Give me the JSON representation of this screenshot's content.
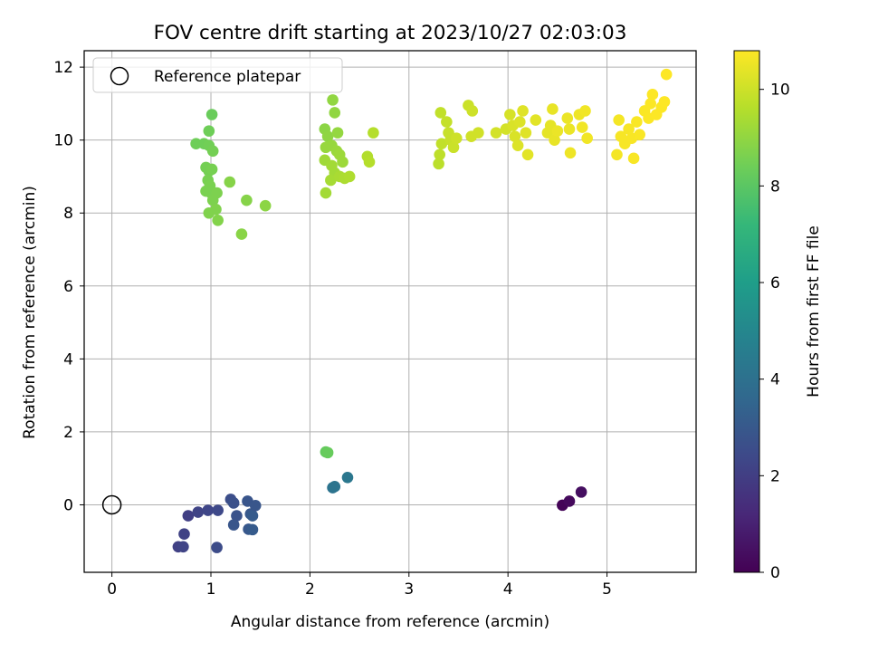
{
  "chart_data": {
    "type": "scatter",
    "title": "FOV centre drift starting at 2023/10/27 02:03:03",
    "xlabel": "Angular distance from reference (arcmin)",
    "ylabel": "Rotation from reference (arcmin)",
    "xlim": [
      -0.28,
      5.9
    ],
    "ylim": [
      -1.85,
      12.45
    ],
    "xticks": [
      0,
      1,
      2,
      3,
      4,
      5
    ],
    "yticks": [
      0,
      2,
      4,
      6,
      8,
      10,
      12
    ],
    "grid": true,
    "legend": {
      "placement": "top-left",
      "entries": [
        "Reference platepar"
      ]
    },
    "reference_point": {
      "x": 0,
      "y": 0,
      "label": "Reference platepar"
    },
    "colorbar": {
      "label": "Hours from first FF file",
      "min": 0,
      "max": 10.8,
      "ticks": [
        0,
        2,
        4,
        6,
        8,
        10
      ],
      "colormap": "viridis"
    },
    "series": [
      {
        "values": [
          {
            "x": 4.55,
            "y": -0.01,
            "t": 0.1
          },
          {
            "x": 4.62,
            "y": 0.1,
            "t": 0.25
          },
          {
            "x": 4.74,
            "y": 0.35,
            "t": 0.4
          },
          {
            "x": 0.67,
            "y": -1.15,
            "t": 2.1
          },
          {
            "x": 0.72,
            "y": -1.15,
            "t": 2.2
          },
          {
            "x": 0.73,
            "y": -0.8,
            "t": 2.15
          },
          {
            "x": 0.77,
            "y": -0.3,
            "t": 2.05
          },
          {
            "x": 0.87,
            "y": -0.2,
            "t": 2.2
          },
          {
            "x": 0.97,
            "y": -0.15,
            "t": 2.3
          },
          {
            "x": 1.07,
            "y": -0.15,
            "t": 2.4
          },
          {
            "x": 1.06,
            "y": -1.17,
            "t": 2.5
          },
          {
            "x": 1.2,
            "y": 0.15,
            "t": 2.6
          },
          {
            "x": 1.23,
            "y": 0.05,
            "t": 2.7
          },
          {
            "x": 1.26,
            "y": -0.3,
            "t": 2.8
          },
          {
            "x": 1.23,
            "y": -0.55,
            "t": 2.9
          },
          {
            "x": 1.37,
            "y": 0.1,
            "t": 2.85
          },
          {
            "x": 1.4,
            "y": -0.25,
            "t": 3.0
          },
          {
            "x": 1.42,
            "y": -0.3,
            "t": 3.1
          },
          {
            "x": 1.38,
            "y": -0.67,
            "t": 3.0
          },
          {
            "x": 1.42,
            "y": -0.68,
            "t": 3.1
          },
          {
            "x": 1.45,
            "y": -0.02,
            "t": 2.9
          },
          {
            "x": 2.23,
            "y": 0.47,
            "t": 4.1
          },
          {
            "x": 2.25,
            "y": 0.5,
            "t": 4.15
          },
          {
            "x": 2.38,
            "y": 0.75,
            "t": 4.3
          },
          {
            "x": 2.16,
            "y": 1.45,
            "t": 8.2
          },
          {
            "x": 2.18,
            "y": 1.43,
            "t": 8.25
          },
          {
            "x": 0.85,
            "y": 9.9,
            "t": 8.4
          },
          {
            "x": 0.93,
            "y": 9.9,
            "t": 8.4
          },
          {
            "x": 0.98,
            "y": 9.85,
            "t": 8.45
          },
          {
            "x": 1.02,
            "y": 9.7,
            "t": 8.5
          },
          {
            "x": 0.98,
            "y": 10.25,
            "t": 8.4
          },
          {
            "x": 1.01,
            "y": 10.7,
            "t": 8.3
          },
          {
            "x": 0.95,
            "y": 9.25,
            "t": 8.5
          },
          {
            "x": 0.98,
            "y": 9.15,
            "t": 8.5
          },
          {
            "x": 1.01,
            "y": 9.2,
            "t": 8.55
          },
          {
            "x": 0.97,
            "y": 8.9,
            "t": 8.55
          },
          {
            "x": 0.99,
            "y": 8.75,
            "t": 8.6
          },
          {
            "x": 0.95,
            "y": 8.6,
            "t": 8.6
          },
          {
            "x": 1.0,
            "y": 8.55,
            "t": 8.6
          },
          {
            "x": 1.06,
            "y": 8.55,
            "t": 8.65
          },
          {
            "x": 1.02,
            "y": 8.35,
            "t": 8.65
          },
          {
            "x": 0.98,
            "y": 8.0,
            "t": 8.7
          },
          {
            "x": 1.05,
            "y": 8.1,
            "t": 8.7
          },
          {
            "x": 1.07,
            "y": 7.8,
            "t": 8.75
          },
          {
            "x": 1.19,
            "y": 8.85,
            "t": 8.8
          },
          {
            "x": 1.36,
            "y": 8.35,
            "t": 8.8
          },
          {
            "x": 1.31,
            "y": 7.42,
            "t": 8.85
          },
          {
            "x": 1.55,
            "y": 8.2,
            "t": 8.9
          },
          {
            "x": 2.15,
            "y": 10.3,
            "t": 8.9
          },
          {
            "x": 2.18,
            "y": 10.1,
            "t": 8.95
          },
          {
            "x": 2.23,
            "y": 11.1,
            "t": 9.0
          },
          {
            "x": 2.25,
            "y": 10.75,
            "t": 9.0
          },
          {
            "x": 2.28,
            "y": 10.2,
            "t": 9.05
          },
          {
            "x": 2.16,
            "y": 9.8,
            "t": 9.1
          },
          {
            "x": 2.22,
            "y": 9.85,
            "t": 9.1
          },
          {
            "x": 2.27,
            "y": 9.7,
            "t": 9.15
          },
          {
            "x": 2.3,
            "y": 9.6,
            "t": 9.2
          },
          {
            "x": 2.33,
            "y": 9.4,
            "t": 9.2
          },
          {
            "x": 2.15,
            "y": 9.45,
            "t": 9.25
          },
          {
            "x": 2.22,
            "y": 9.3,
            "t": 9.3
          },
          {
            "x": 2.25,
            "y": 9.1,
            "t": 9.3
          },
          {
            "x": 2.21,
            "y": 8.9,
            "t": 9.35
          },
          {
            "x": 2.3,
            "y": 9.0,
            "t": 9.4
          },
          {
            "x": 2.35,
            "y": 8.95,
            "t": 9.45
          },
          {
            "x": 2.4,
            "y": 9.0,
            "t": 9.5
          },
          {
            "x": 2.16,
            "y": 8.55,
            "t": 9.3
          },
          {
            "x": 2.58,
            "y": 9.55,
            "t": 9.55
          },
          {
            "x": 2.6,
            "y": 9.4,
            "t": 9.6
          },
          {
            "x": 2.64,
            "y": 10.2,
            "t": 9.6
          },
          {
            "x": 3.3,
            "y": 9.35,
            "t": 9.7
          },
          {
            "x": 3.31,
            "y": 9.6,
            "t": 9.75
          },
          {
            "x": 3.33,
            "y": 9.9,
            "t": 9.8
          },
          {
            "x": 3.32,
            "y": 10.75,
            "t": 9.8
          },
          {
            "x": 3.38,
            "y": 10.5,
            "t": 9.85
          },
          {
            "x": 3.4,
            "y": 10.2,
            "t": 9.9
          },
          {
            "x": 3.42,
            "y": 10.0,
            "t": 9.9
          },
          {
            "x": 3.45,
            "y": 9.8,
            "t": 9.95
          },
          {
            "x": 3.48,
            "y": 10.05,
            "t": 10.0
          },
          {
            "x": 3.6,
            "y": 10.95,
            "t": 9.95
          },
          {
            "x": 3.64,
            "y": 10.8,
            "t": 10.0
          },
          {
            "x": 3.63,
            "y": 10.1,
            "t": 10.05
          },
          {
            "x": 3.7,
            "y": 10.2,
            "t": 10.05
          },
          {
            "x": 3.88,
            "y": 10.2,
            "t": 10.1
          },
          {
            "x": 3.98,
            "y": 10.3,
            "t": 10.1
          },
          {
            "x": 4.02,
            "y": 10.7,
            "t": 10.15
          },
          {
            "x": 4.05,
            "y": 10.4,
            "t": 10.2
          },
          {
            "x": 4.07,
            "y": 10.1,
            "t": 10.2
          },
          {
            "x": 4.1,
            "y": 9.85,
            "t": 10.25
          },
          {
            "x": 4.12,
            "y": 10.5,
            "t": 10.25
          },
          {
            "x": 4.15,
            "y": 10.8,
            "t": 10.3
          },
          {
            "x": 4.18,
            "y": 10.2,
            "t": 10.3
          },
          {
            "x": 4.2,
            "y": 9.6,
            "t": 10.35
          },
          {
            "x": 4.28,
            "y": 10.55,
            "t": 10.35
          },
          {
            "x": 4.4,
            "y": 10.2,
            "t": 10.4
          },
          {
            "x": 4.43,
            "y": 10.4,
            "t": 10.4
          },
          {
            "x": 4.45,
            "y": 10.85,
            "t": 10.45
          },
          {
            "x": 4.47,
            "y": 10.0,
            "t": 10.45
          },
          {
            "x": 4.5,
            "y": 10.25,
            "t": 10.5
          },
          {
            "x": 4.6,
            "y": 10.6,
            "t": 10.5
          },
          {
            "x": 4.62,
            "y": 10.3,
            "t": 10.5
          },
          {
            "x": 4.63,
            "y": 9.65,
            "t": 10.55
          },
          {
            "x": 4.72,
            "y": 10.7,
            "t": 10.55
          },
          {
            "x": 4.75,
            "y": 10.35,
            "t": 10.6
          },
          {
            "x": 4.78,
            "y": 10.8,
            "t": 10.6
          },
          {
            "x": 4.8,
            "y": 10.05,
            "t": 10.6
          },
          {
            "x": 5.1,
            "y": 9.6,
            "t": 10.65
          },
          {
            "x": 5.12,
            "y": 10.55,
            "t": 10.65
          },
          {
            "x": 5.14,
            "y": 10.1,
            "t": 10.7
          },
          {
            "x": 5.18,
            "y": 9.9,
            "t": 10.7
          },
          {
            "x": 5.22,
            "y": 10.3,
            "t": 10.7
          },
          {
            "x": 5.25,
            "y": 10.05,
            "t": 10.72
          },
          {
            "x": 5.27,
            "y": 9.5,
            "t": 10.72
          },
          {
            "x": 5.3,
            "y": 10.5,
            "t": 10.74
          },
          {
            "x": 5.33,
            "y": 10.15,
            "t": 10.74
          },
          {
            "x": 5.38,
            "y": 10.8,
            "t": 10.75
          },
          {
            "x": 5.42,
            "y": 10.6,
            "t": 10.76
          },
          {
            "x": 5.44,
            "y": 11.0,
            "t": 10.77
          },
          {
            "x": 5.46,
            "y": 11.25,
            "t": 10.78
          },
          {
            "x": 5.5,
            "y": 10.7,
            "t": 10.78
          },
          {
            "x": 5.55,
            "y": 10.9,
            "t": 10.79
          },
          {
            "x": 5.58,
            "y": 11.05,
            "t": 10.8
          },
          {
            "x": 5.6,
            "y": 11.8,
            "t": 10.8
          }
        ]
      }
    ]
  }
}
